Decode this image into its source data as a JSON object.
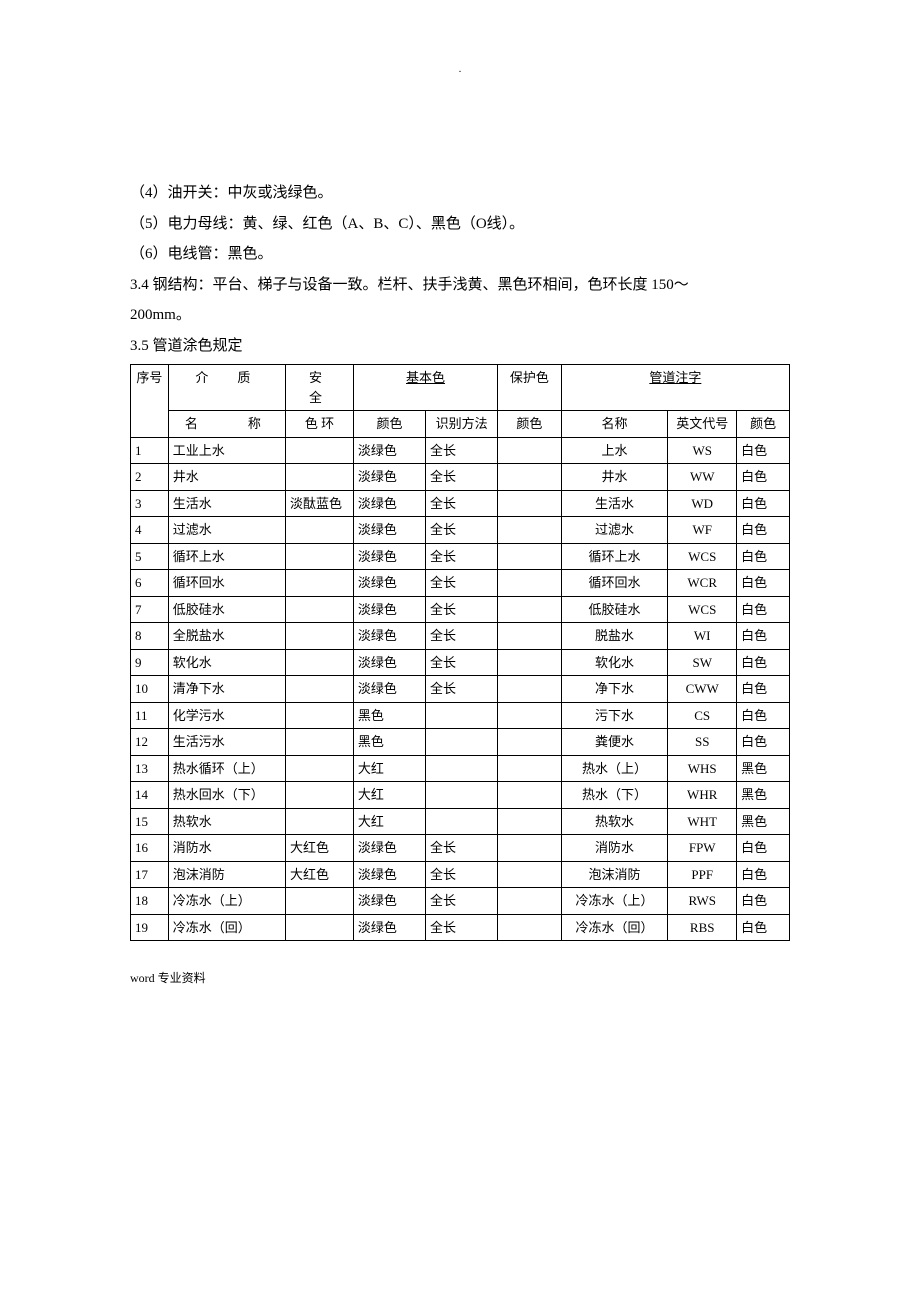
{
  "dot": ".",
  "paragraphs": {
    "p4": "（4）油开关：中灰或浅绿色。",
    "p5": "（5）电力母线：黄、绿、红色（A、B、C）、黑色（O线）。",
    "p6": "（6）电线管：黑色。",
    "p34a": "3.4 钢结构：平台、梯子与设备一致。栏杆、扶手浅黄、黑色环相间，色环长度 150～",
    "p34b": "200mm。",
    "p35": "3.5 管道涂色规定"
  },
  "table": {
    "header": {
      "seq": "序号",
      "medium": "介　质",
      "mediumName": "名　　称",
      "safety": "安　全",
      "safetyRing": "色 环",
      "basic": "基本色",
      "color": "颜色",
      "method": "识别方法",
      "protect": "保护色",
      "protectColor": "颜色",
      "pipeLabel": "管道注字",
      "cnName": "名称",
      "enCode": "英文代号",
      "labelColor": "颜色"
    },
    "rows": [
      {
        "seq": "1",
        "name": "工业上水",
        "safe": "",
        "c1": "淡绿色",
        "m": "全长",
        "p": "",
        "cn": "上水",
        "en": "WS",
        "cc": "白色"
      },
      {
        "seq": "2",
        "name": "井水",
        "safe": "",
        "c1": "淡绿色",
        "m": "全长",
        "p": "",
        "cn": "井水",
        "en": "WW",
        "cc": "白色"
      },
      {
        "seq": "3",
        "name": "生活水",
        "safe": "淡酞蓝色",
        "c1": "淡绿色",
        "m": "全长",
        "p": "",
        "cn": "生活水",
        "en": "WD",
        "cc": "白色"
      },
      {
        "seq": "4",
        "name": "过滤水",
        "safe": "",
        "c1": "淡绿色",
        "m": "全长",
        "p": "",
        "cn": "过滤水",
        "en": "WF",
        "cc": "白色"
      },
      {
        "seq": "5",
        "name": "循环上水",
        "safe": "",
        "c1": "淡绿色",
        "m": "全长",
        "p": "",
        "cn": "循环上水",
        "en": "WCS",
        "cc": "白色"
      },
      {
        "seq": "6",
        "name": "循环回水",
        "safe": "",
        "c1": "淡绿色",
        "m": "全长",
        "p": "",
        "cn": "循环回水",
        "en": "WCR",
        "cc": "白色"
      },
      {
        "seq": "7",
        "name": "低胶硅水",
        "safe": "",
        "c1": "淡绿色",
        "m": "全长",
        "p": "",
        "cn": "低胶硅水",
        "en": "WCS",
        "cc": "白色"
      },
      {
        "seq": "8",
        "name": "全脱盐水",
        "safe": "",
        "c1": "淡绿色",
        "m": "全长",
        "p": "",
        "cn": "脱盐水",
        "en": "WI",
        "cc": "白色"
      },
      {
        "seq": "9",
        "name": "软化水",
        "safe": "",
        "c1": "淡绿色",
        "m": "全长",
        "p": "",
        "cn": "软化水",
        "en": "SW",
        "cc": "白色"
      },
      {
        "seq": "10",
        "name": "清净下水",
        "safe": "",
        "c1": "淡绿色",
        "m": "全长",
        "p": "",
        "cn": "净下水",
        "en": "CWW",
        "cc": "白色"
      },
      {
        "seq": "11",
        "name": "化学污水",
        "safe": "",
        "c1": "黑色",
        "m": "",
        "p": "",
        "cn": "污下水",
        "en": "CS",
        "cc": "白色"
      },
      {
        "seq": "12",
        "name": "生活污水",
        "safe": "",
        "c1": "黑色",
        "m": "",
        "p": "",
        "cn": "粪便水",
        "en": "SS",
        "cc": "白色"
      },
      {
        "seq": "13",
        "name": "热水循环（上）",
        "safe": "",
        "c1": "大红",
        "m": "",
        "p": "",
        "cn": "热水（上）",
        "en": "WHS",
        "cc": "黑色"
      },
      {
        "seq": "14",
        "name": "热水回水（下）",
        "safe": "",
        "c1": "大红",
        "m": "",
        "p": "",
        "cn": "热水（下）",
        "en": "WHR",
        "cc": "黑色"
      },
      {
        "seq": "15",
        "name": "热软水",
        "safe": "",
        "c1": "大红",
        "m": "",
        "p": "",
        "cn": "热软水",
        "en": "WHT",
        "cc": "黑色"
      },
      {
        "seq": "16",
        "name": "消防水",
        "safe": "大红色",
        "c1": "淡绿色",
        "m": "全长",
        "p": "",
        "cn": "消防水",
        "en": "FPW",
        "cc": "白色"
      },
      {
        "seq": "17",
        "name": "泡沫消防",
        "safe": "大红色",
        "c1": "淡绿色",
        "m": "全长",
        "p": "",
        "cn": "泡沫消防",
        "en": "PPF",
        "cc": "白色"
      },
      {
        "seq": "18",
        "name": "冷冻水（上）",
        "safe": "",
        "c1": "淡绿色",
        "m": "全长",
        "p": "",
        "cn": "冷冻水（上）",
        "en": "RWS",
        "cc": "白色"
      },
      {
        "seq": "19",
        "name": "冷冻水（回）",
        "safe": "",
        "c1": "淡绿色",
        "m": "全长",
        "p": "",
        "cn": "冷冻水（回）",
        "en": "RBS",
        "cc": "白色"
      }
    ]
  },
  "footer": "word 专业资料"
}
